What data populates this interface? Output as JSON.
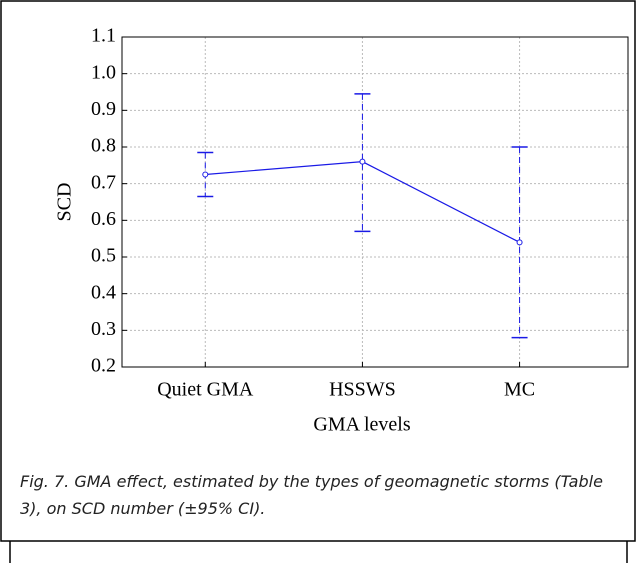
{
  "chart_data": {
    "type": "errorbar-line",
    "x_label": "GMA levels",
    "y_label": "SCD",
    "categories": [
      "Quiet GMA",
      "HSSWS",
      "MC"
    ],
    "series": [
      {
        "color": "#1a1ae6",
        "values": [
          0.725,
          0.76,
          0.54
        ],
        "lower": [
          0.665,
          0.57,
          0.28
        ],
        "upper": [
          0.785,
          0.945,
          0.8
        ]
      }
    ],
    "ylim": [
      0.2,
      1.1
    ],
    "yticks": [
      0.2,
      0.3,
      0.4,
      0.5,
      0.6,
      0.7,
      0.8,
      0.9,
      {
        "value": 1,
        "label": "1.0"
      },
      1.1
    ],
    "grid": true,
    "caption": "Fig. 7. GMA effect, estimated by the types of geomagnetic storms (Table 3), on SCD number (±95% CI)."
  }
}
